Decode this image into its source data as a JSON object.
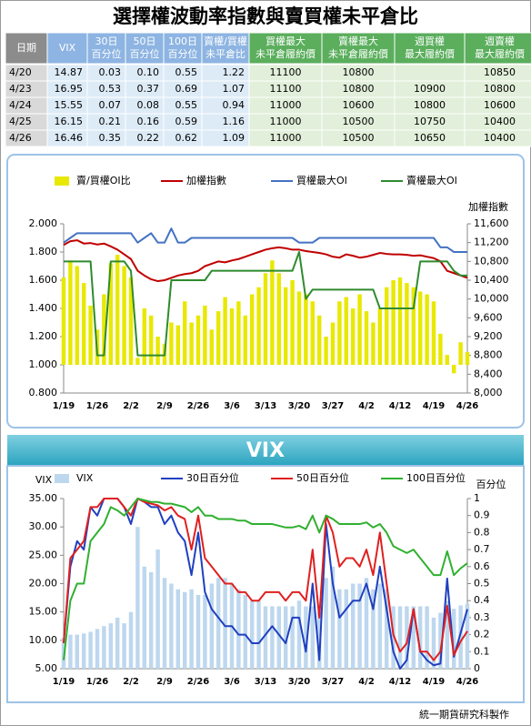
{
  "title": "選擇權波動率指數與賣買權未平倉比",
  "table": {
    "header": [
      [
        "日期"
      ],
      [
        "VIX"
      ],
      [
        "30日",
        "百分位"
      ],
      [
        "50日",
        "百分位"
      ],
      [
        "100日",
        "百分位"
      ],
      [
        "賣權/買權",
        "未平倉比"
      ],
      [
        "買權最大",
        "未平倉履約價"
      ],
      [
        "賣權最大",
        "未平倉履約價"
      ],
      [
        "週買權",
        "最大履約價"
      ],
      [
        "週賣權",
        "最大履約價"
      ]
    ],
    "rows": [
      [
        "4/20",
        "14.87",
        "0.03",
        "0.10",
        "0.55",
        "1.22",
        "11100",
        "10800",
        null,
        "10850"
      ],
      [
        "4/23",
        "16.95",
        "0.53",
        "0.37",
        "0.69",
        "1.07",
        "11100",
        "10800",
        "10900",
        "10800"
      ],
      [
        "4/24",
        "15.55",
        "0.07",
        "0.08",
        "0.55",
        "0.94",
        "11000",
        "10600",
        "10800",
        "10600"
      ],
      [
        "4/25",
        "16.15",
        "0.21",
        "0.16",
        "0.59",
        "1.16",
        "11000",
        "10500",
        "10750",
        "10400"
      ],
      [
        "4/26",
        "16.46",
        "0.35",
        "0.22",
        "0.62",
        "1.09",
        "11000",
        "10500",
        "10650",
        "10400"
      ]
    ]
  },
  "chart_data": [
    {
      "type": "combo",
      "y2label": "加權指數",
      "baseline": 1,
      "categories": [
        "1/19",
        null,
        null,
        null,
        null,
        "1/26",
        null,
        null,
        null,
        null,
        "2/2",
        null,
        null,
        null,
        null,
        "2/9",
        null,
        null,
        null,
        null,
        "2/26",
        null,
        null,
        null,
        null,
        "3/6",
        null,
        null,
        null,
        null,
        "3/13",
        null,
        null,
        null,
        null,
        "3/20",
        null,
        null,
        null,
        null,
        "3/27",
        null,
        null,
        null,
        null,
        "4/2",
        null,
        null,
        null,
        null,
        "4/12",
        null,
        null,
        null,
        null,
        "4/19",
        null,
        null,
        null,
        null,
        "4/26"
      ],
      "ylim": [
        0.8,
        2.0
      ],
      "yticks": [
        {
          "value": 0.8,
          "label": "0.800"
        },
        {
          "value": 1.0,
          "label": "1.000"
        },
        {
          "value": 1.2,
          "label": "1.200"
        },
        {
          "value": 1.4,
          "label": "1.400"
        },
        {
          "value": 1.6,
          "label": "1.600"
        },
        {
          "value": 1.8,
          "label": "1.800"
        },
        {
          "value": 2.0,
          "label": "2.000"
        }
      ],
      "y2lim": [
        8000,
        11600
      ],
      "y2ticks": [
        {
          "value": 8000,
          "label": "8,000"
        },
        {
          "value": 8400,
          "label": "8,400"
        },
        {
          "value": 8800,
          "label": "8,800"
        },
        {
          "value": 9200,
          "label": "9,200"
        },
        {
          "value": 9600,
          "label": "9,600"
        },
        {
          "value": 10000,
          "label": "10,000"
        },
        {
          "value": 10400,
          "label": "10,400"
        },
        {
          "value": 10800,
          "label": "10,800"
        },
        {
          "value": 11200,
          "label": "11,200"
        },
        {
          "value": 11600,
          "label": "11,600"
        }
      ],
      "series": [
        {
          "name": "賣/買權OI比",
          "type": "bar",
          "color": "#e8e800",
          "values": [
            1.62,
            1.74,
            1.7,
            1.58,
            1.42,
            1.25,
            1.5,
            1.72,
            1.78,
            1.7,
            1.62,
            1.05,
            1.4,
            1.35,
            1.2,
            1.15,
            1.3,
            1.28,
            1.45,
            1.3,
            1.35,
            1.42,
            1.25,
            1.38,
            1.48,
            1.4,
            1.45,
            1.35,
            1.5,
            1.55,
            1.65,
            1.74,
            1.65,
            1.55,
            1.6,
            1.52,
            1.5,
            1.45,
            1.35,
            1.2,
            1.3,
            1.45,
            1.48,
            1.4,
            1.5,
            1.38,
            1.3,
            1.4,
            1.55,
            1.6,
            1.62,
            1.58,
            1.55,
            1.52,
            1.5,
            1.45,
            1.22,
            1.07,
            0.94,
            1.16,
            1.09
          ]
        },
        {
          "name": "加權指數",
          "type": "line",
          "axis": "y2",
          "color": "#c00000",
          "values": [
            11150,
            11230,
            11250,
            11180,
            11190,
            11160,
            11180,
            11120,
            11050,
            10950,
            10850,
            10600,
            10500,
            10420,
            10380,
            10400,
            10450,
            10500,
            10530,
            10550,
            10600,
            10700,
            10750,
            10800,
            10780,
            10820,
            10850,
            10900,
            10950,
            11000,
            11050,
            11080,
            11100,
            11080,
            11050,
            11050,
            11020,
            11000,
            10980,
            10950,
            10900,
            10880,
            10950,
            10920,
            10880,
            10900,
            10940,
            10980,
            10960,
            10950,
            10950,
            10940,
            10920,
            10930,
            10900,
            10870,
            10800,
            10600,
            10550,
            10500,
            10450
          ]
        },
        {
          "name": "買權最大OI",
          "type": "line",
          "axis": "y2",
          "color": "#4472c4",
          "values": [
            11200,
            11300,
            11400,
            11400,
            11400,
            11400,
            11400,
            11400,
            11400,
            11400,
            11400,
            11200,
            11300,
            11400,
            11200,
            11200,
            11500,
            11200,
            11200,
            11300,
            11300,
            11300,
            11300,
            11300,
            11300,
            11300,
            11300,
            11300,
            11300,
            11300,
            11300,
            11300,
            11300,
            11300,
            11300,
            11200,
            11200,
            11200,
            11300,
            11300,
            11300,
            11300,
            11300,
            11300,
            11300,
            11300,
            11300,
            11300,
            11300,
            11300,
            11300,
            11300,
            11300,
            11300,
            11300,
            11300,
            11100,
            11100,
            11000,
            11000,
            11000
          ]
        },
        {
          "name": "賣權最大OI",
          "type": "line",
          "axis": "y2",
          "color": "#2e8b2e",
          "values": [
            10800,
            10800,
            10800,
            10800,
            10800,
            8800,
            8800,
            10800,
            10800,
            10800,
            10600,
            8800,
            8800,
            8800,
            8800,
            8800,
            10400,
            10400,
            10400,
            10400,
            10400,
            10400,
            10600,
            10600,
            10600,
            10600,
            10600,
            10600,
            10600,
            10600,
            10600,
            10600,
            10600,
            10600,
            10600,
            11000,
            10000,
            10200,
            10200,
            10200,
            10200,
            10200,
            10200,
            10200,
            10200,
            10200,
            10200,
            9800,
            9800,
            9800,
            9800,
            9800,
            9800,
            10800,
            10800,
            10800,
            10800,
            10800,
            10600,
            10500,
            10500
          ]
        }
      ]
    },
    {
      "type": "combo",
      "title": "VIX",
      "ylabel": "VIX",
      "y2label": "百分位",
      "categories": [
        "1/19",
        null,
        null,
        null,
        null,
        "1/26",
        null,
        null,
        null,
        null,
        "2/2",
        null,
        null,
        null,
        null,
        "2/9",
        null,
        null,
        null,
        null,
        "2/26",
        null,
        null,
        null,
        null,
        "3/6",
        null,
        null,
        null,
        null,
        "3/13",
        null,
        null,
        null,
        null,
        "3/20",
        null,
        null,
        null,
        null,
        "3/27",
        null,
        null,
        null,
        null,
        "4/2",
        null,
        null,
        null,
        null,
        "4/12",
        null,
        null,
        null,
        null,
        "4/19",
        null,
        null,
        null,
        null,
        "4/26"
      ],
      "ylim": [
        5,
        35
      ],
      "yticks": [
        {
          "value": 5,
          "label": "5.00"
        },
        {
          "value": 10,
          "label": "10.00"
        },
        {
          "value": 15,
          "label": "15.00"
        },
        {
          "value": 20,
          "label": "20.00"
        },
        {
          "value": 25,
          "label": "25.00"
        },
        {
          "value": 30,
          "label": "30.00"
        },
        {
          "value": 35,
          "label": "35.00"
        }
      ],
      "y2lim": [
        0,
        1
      ],
      "y2ticks": [
        0,
        0.1,
        0.2,
        0.3,
        0.4,
        0.5,
        0.6,
        0.7,
        0.8,
        0.9,
        1
      ],
      "series": [
        {
          "name": "VIX",
          "type": "bar",
          "color": "#bdd7ee",
          "values": [
            10.5,
            11,
            11,
            11.2,
            11.5,
            12,
            12.5,
            13,
            14,
            13,
            15,
            30,
            23,
            22,
            26,
            21,
            20,
            19,
            18.5,
            19,
            18,
            18,
            20,
            21,
            21,
            20,
            19,
            18,
            17,
            17,
            16,
            16,
            16,
            16,
            16,
            17,
            16,
            16,
            15,
            21,
            23,
            19,
            19,
            20,
            20,
            21,
            19,
            20,
            19,
            16,
            16,
            16,
            16,
            16,
            16,
            14,
            14.87,
            16.95,
            15.55,
            16.15,
            16.46
          ]
        },
        {
          "name": "30日百分位",
          "type": "line",
          "axis": "y2",
          "color": "#2040c0",
          "values": [
            0.15,
            0.6,
            0.75,
            0.7,
            0.95,
            0.9,
            1,
            1,
            1,
            0.95,
            0.85,
            1,
            0.98,
            0.95,
            0.95,
            0.85,
            0.9,
            0.8,
            0.75,
            0.55,
            0.8,
            0.45,
            0.35,
            0.3,
            0.25,
            0.25,
            0.2,
            0.2,
            0.15,
            0.15,
            0.2,
            0.25,
            0.2,
            0.15,
            0.3,
            0.3,
            0.1,
            0.5,
            0.05,
            0.85,
            0.5,
            0.3,
            0.35,
            0.4,
            0.4,
            0.5,
            0.35,
            0.6,
            0.35,
            0.1,
            0.0,
            0.05,
            0.35,
            0.1,
            0.05,
            0.02,
            0.03,
            0.53,
            0.07,
            0.21,
            0.35
          ]
        },
        {
          "name": "50日百分位",
          "type": "line",
          "axis": "y2",
          "color": "#e02020",
          "values": [
            0.15,
            0.65,
            0.7,
            0.75,
            0.95,
            0.95,
            1,
            1,
            1,
            0.95,
            0.9,
            1,
            0.98,
            0.97,
            0.96,
            0.93,
            0.95,
            0.9,
            0.88,
            0.7,
            0.9,
            0.65,
            0.6,
            0.55,
            0.5,
            0.5,
            0.45,
            0.45,
            0.4,
            0.4,
            0.45,
            0.45,
            0.45,
            0.4,
            0.45,
            0.45,
            0.4,
            0.7,
            0.3,
            0.9,
            0.8,
            0.6,
            0.65,
            0.65,
            0.6,
            0.7,
            0.55,
            0.8,
            0.5,
            0.2,
            0.1,
            0.15,
            0.35,
            0.1,
            0.1,
            0.05,
            0.1,
            0.37,
            0.08,
            0.16,
            0.22
          ]
        },
        {
          "name": "100日百分位",
          "type": "line",
          "axis": "y2",
          "color": "#30b030",
          "values": [
            0.05,
            0.4,
            0.5,
            0.5,
            0.75,
            0.8,
            0.85,
            0.95,
            0.93,
            0.9,
            0.95,
            1,
            0.99,
            0.98,
            0.98,
            0.97,
            0.97,
            0.96,
            0.95,
            0.92,
            0.95,
            0.9,
            0.9,
            0.88,
            0.88,
            0.88,
            0.87,
            0.87,
            0.85,
            0.85,
            0.85,
            0.85,
            0.84,
            0.83,
            0.83,
            0.84,
            0.82,
            0.9,
            0.8,
            0.9,
            0.88,
            0.85,
            0.85,
            0.85,
            0.85,
            0.86,
            0.83,
            0.85,
            0.8,
            0.72,
            0.7,
            0.68,
            0.7,
            0.65,
            0.6,
            0.55,
            0.55,
            0.69,
            0.55,
            0.59,
            0.62
          ]
        }
      ]
    }
  ],
  "footer": "統一期貨研究科製作"
}
